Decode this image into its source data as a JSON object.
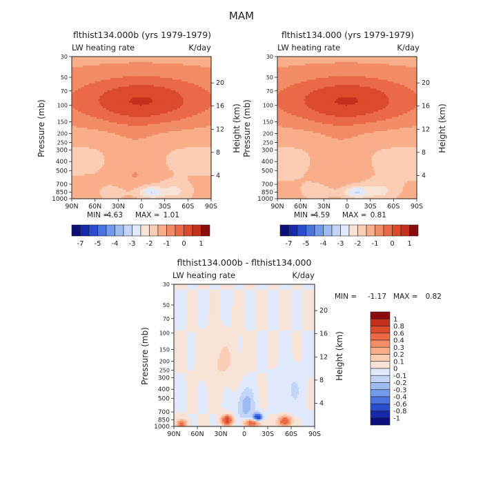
{
  "title": "MAM",
  "colors": {
    "warm": [
      "#f7e2d6",
      "#fbcdb4",
      "#f9ae8a",
      "#f28c66",
      "#ea6a47",
      "#dc4a2c",
      "#c3301c",
      "#8b0c0c"
    ],
    "cool": [
      "#dfe9fb",
      "#c2d5f7",
      "#9dbaf1",
      "#7399ea",
      "#4a73e0",
      "#2a4dd0",
      "#1829aa",
      "#0a0f7a"
    ]
  },
  "chart_data": [
    {
      "type": "heatmap",
      "title": "flthist134.000b (yrs 1979-1979)",
      "variable": "LW heating rate",
      "units": "K/day",
      "xlabel": "",
      "ylabel": "Pressure (mb)",
      "y2label": "Height (km)",
      "x_ticks": [
        "90N",
        "60N",
        "30N",
        "0",
        "30S",
        "60S",
        "90S"
      ],
      "x_values": [
        90,
        60,
        30,
        0,
        -30,
        -60,
        -90
      ],
      "y_ticks": [
        "30",
        "50",
        "70",
        "100",
        "150",
        "200",
        "250",
        "300",
        "400",
        "500",
        "700",
        "850",
        "1000"
      ],
      "y_values": [
        30,
        50,
        70,
        100,
        150,
        200,
        250,
        300,
        400,
        500,
        700,
        850,
        1000
      ],
      "y2_ticks": [
        "20",
        "16",
        "12",
        "8",
        "4"
      ],
      "y2_values": [
        20,
        16,
        12,
        8,
        4
      ],
      "ylim": [
        1000,
        30
      ],
      "min_label": "MIN =",
      "min": "-4.63",
      "max_label": "MAX =",
      "max": "1.01",
      "colorbar_labels": [
        "-7",
        "-5",
        "-4",
        "-3",
        "-2",
        "-1",
        "0",
        "1"
      ]
    },
    {
      "type": "heatmap",
      "title": "flthist134.000 (yrs 1979-1979)",
      "variable": "LW heating rate",
      "units": "K/day",
      "xlabel": "",
      "ylabel": "Pressure (mb)",
      "y2label": "Height (km)",
      "x_ticks": [
        "90N",
        "60N",
        "30N",
        "0",
        "30S",
        "60S",
        "90S"
      ],
      "x_values": [
        90,
        60,
        30,
        0,
        -30,
        -60,
        -90
      ],
      "y_ticks": [
        "30",
        "50",
        "70",
        "100",
        "150",
        "200",
        "250",
        "300",
        "400",
        "500",
        "700",
        "850",
        "1000"
      ],
      "y_values": [
        30,
        50,
        70,
        100,
        150,
        200,
        250,
        300,
        400,
        500,
        700,
        850,
        1000
      ],
      "y2_ticks": [
        "20",
        "16",
        "12",
        "8",
        "4"
      ],
      "y2_values": [
        20,
        16,
        12,
        8,
        4
      ],
      "ylim": [
        1000,
        30
      ],
      "min_label": "MIN =",
      "min": "-4.59",
      "max_label": "MAX =",
      "max": "0.81",
      "colorbar_labels": [
        "-7",
        "-5",
        "-4",
        "-3",
        "-2",
        "-1",
        "0",
        "1"
      ]
    },
    {
      "type": "heatmap",
      "title": "flthist134.000b - flthist134.000",
      "variable": "LW heating rate",
      "units": "K/day",
      "xlabel": "",
      "ylabel": "Pressure (mb)",
      "y2label": "Height (km)",
      "x_ticks": [
        "90N",
        "60N",
        "30N",
        "0",
        "30S",
        "60S",
        "90S"
      ],
      "x_values": [
        90,
        60,
        30,
        0,
        -30,
        -60,
        -90
      ],
      "y_ticks": [
        "30",
        "50",
        "70",
        "100",
        "150",
        "200",
        "250",
        "300",
        "400",
        "500",
        "700",
        "850",
        "1000"
      ],
      "y_values": [
        30,
        50,
        70,
        100,
        150,
        200,
        250,
        300,
        400,
        500,
        700,
        850,
        1000
      ],
      "y2_ticks": [
        "20",
        "16",
        "12",
        "8",
        "4"
      ],
      "y2_values": [
        20,
        16,
        12,
        8,
        4
      ],
      "ylim": [
        1000,
        30
      ],
      "min_label": "MIN =",
      "min": "-1.17",
      "max_label": "MAX =",
      "max": "0.82",
      "colorbar_labels": [
        "1",
        "0.8",
        "0.6",
        "0.4",
        "0.3",
        "0.2",
        "0.1",
        "0",
        "-0.1",
        "-0.2",
        "-0.3",
        "-0.4",
        "-0.6",
        "-0.8",
        "-1"
      ]
    }
  ]
}
